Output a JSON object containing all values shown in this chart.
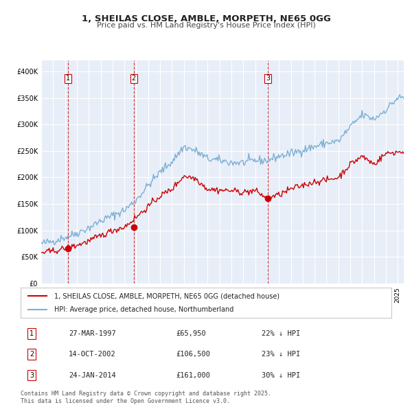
{
  "title": "1, SHEILAS CLOSE, AMBLE, MORPETH, NE65 0GG",
  "subtitle": "Price paid vs. HM Land Registry's House Price Index (HPI)",
  "xlabel": "",
  "ylabel": "",
  "ylim": [
    0,
    420000
  ],
  "xlim_start": 1995.0,
  "xlim_end": 2025.5,
  "background_color": "#ffffff",
  "plot_bg_color": "#e8eef8",
  "grid_color": "#ffffff",
  "hpi_color": "#7bafd4",
  "price_color": "#cc0000",
  "sale_marker_color": "#cc0000",
  "dashed_line_color": "#cc0000",
  "legend_label_price": "1, SHEILAS CLOSE, AMBLE, MORPETH, NE65 0GG (detached house)",
  "legend_label_hpi": "HPI: Average price, detached house, Northumberland",
  "sale_dates": [
    1997.23,
    2002.79,
    2014.07
  ],
  "sale_prices": [
    65950,
    106500,
    161000
  ],
  "sale_labels": [
    "1",
    "2",
    "3"
  ],
  "sale_info": [
    {
      "label": "1",
      "date": "27-MAR-1997",
      "price": "£65,950",
      "hpi_pct": "22% ↓ HPI"
    },
    {
      "label": "2",
      "date": "14-OCT-2002",
      "price": "£106,500",
      "hpi_pct": "23% ↓ HPI"
    },
    {
      "label": "3",
      "date": "24-JAN-2014",
      "price": "£161,000",
      "hpi_pct": "30% ↓ HPI"
    }
  ],
  "footer": "Contains HM Land Registry data © Crown copyright and database right 2025.\nThis data is licensed under the Open Government Licence v3.0.",
  "yticks": [
    0,
    50000,
    100000,
    150000,
    200000,
    250000,
    300000,
    350000,
    400000
  ],
  "ytick_labels": [
    "£0",
    "£50K",
    "£100K",
    "£150K",
    "£200K",
    "£250K",
    "£300K",
    "£350K",
    "£400K"
  ]
}
